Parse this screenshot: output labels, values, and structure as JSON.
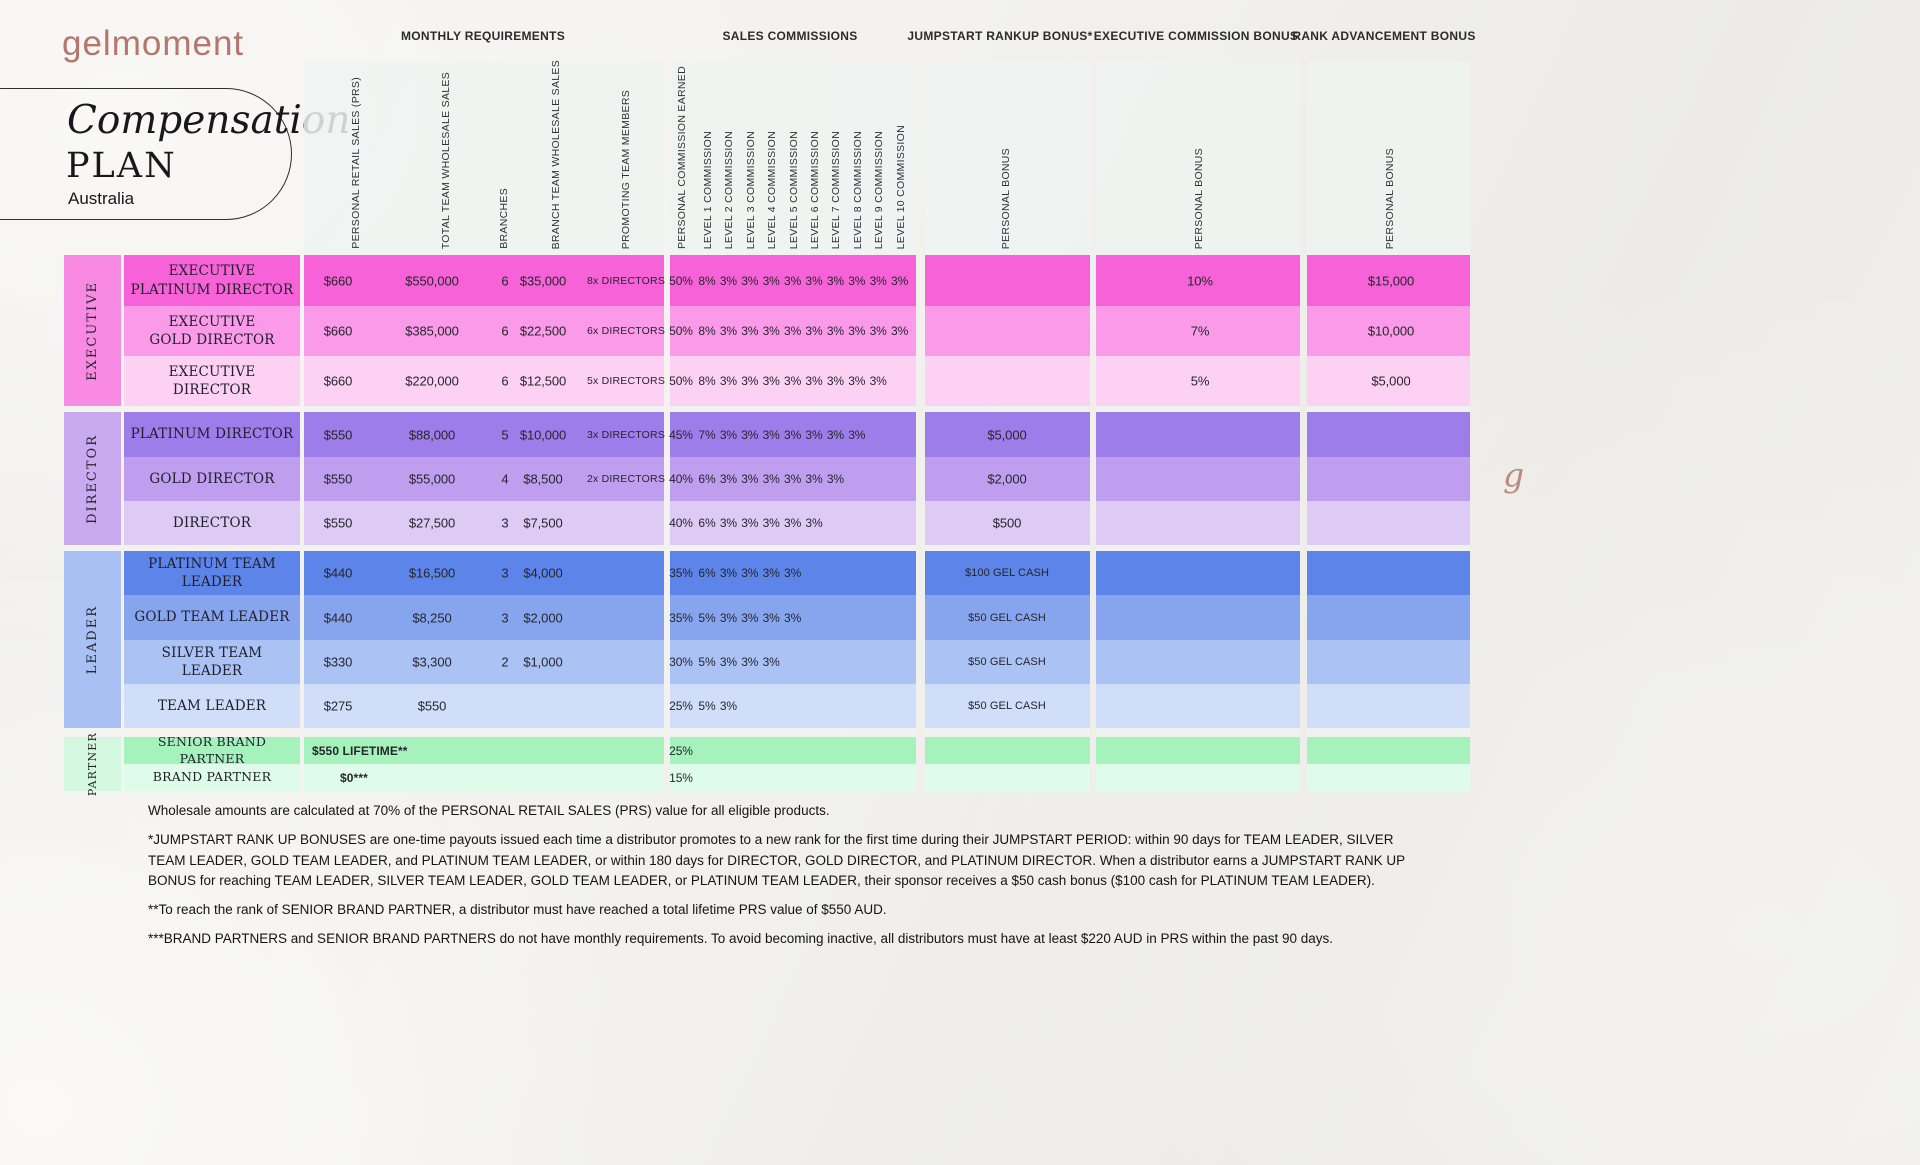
{
  "brand": {
    "logo": "gelmoment",
    "title_line1": "Compensation",
    "title_line2": "PLAN",
    "region": "Australia",
    "monogram": "g",
    "logo_color": "#b3786d"
  },
  "column_groups": [
    {
      "id": "monthly",
      "title": "MONTHLY REQUIREMENTS",
      "columns": [
        "PERSONAL RETAIL SALES (PRS)",
        "TOTAL TEAM WHOLESALE SALES",
        "BRANCHES",
        "BRANCH TEAM WHOLESALE SALES",
        "PROMOTING TEAM MEMBERS"
      ]
    },
    {
      "id": "commissions",
      "title": "SALES COMMISSIONS",
      "columns": [
        "PERSONAL COMMISSION EARNED",
        "LEVEL 1 COMMISSION",
        "LEVEL 2 COMMISSION",
        "LEVEL 3 COMMISSION",
        "LEVEL 4 COMMISSION",
        "LEVEL 5 COMMISSION",
        "LEVEL 6 COMMISSION",
        "LEVEL 7 COMMISSION",
        "LEVEL 8 COMMISSION",
        "LEVEL 9 COMMISSION",
        "LEVEL 10 COMMISSION"
      ]
    },
    {
      "id": "jumpstart",
      "title": "JUMPSTART RANKUP BONUS*",
      "columns": [
        "PERSONAL BONUS"
      ]
    },
    {
      "id": "exec_bonus",
      "title": "EXECUTIVE COMMISSION BONUS",
      "columns": [
        "PERSONAL BONUS"
      ]
    },
    {
      "id": "rank_adv",
      "title": "RANK ADVANCEMENT BONUS",
      "columns": [
        "PERSONAL BONUS"
      ]
    }
  ],
  "groups": [
    {
      "label": "EXECUTIVE",
      "color": "#f98ae4",
      "rows": [
        {
          "rank": "EXECUTIVE\nPLATINUM DIRECTOR",
          "color": "#f762d8",
          "monthly": [
            "$660",
            "$550,000",
            "6",
            "$35,000",
            "8x DIRECTORS"
          ],
          "commissions": [
            "50%",
            "8%",
            "3%",
            "3%",
            "3%",
            "3%",
            "3%",
            "3%",
            "3%",
            "3%",
            "3%"
          ],
          "jumpstart": "",
          "exec_bonus": "10%",
          "rank_adv": "$15,000"
        },
        {
          "rank": "EXECUTIVE\nGOLD DIRECTOR",
          "color": "#fa9ae9",
          "monthly": [
            "$660",
            "$385,000",
            "6",
            "$22,500",
            "6x DIRECTORS"
          ],
          "commissions": [
            "50%",
            "8%",
            "3%",
            "3%",
            "3%",
            "3%",
            "3%",
            "3%",
            "3%",
            "3%",
            "3%"
          ],
          "jumpstart": "",
          "exec_bonus": "7%",
          "rank_adv": "$10,000"
        },
        {
          "rank": "EXECUTIVE DIRECTOR",
          "color": "#fdd1f3",
          "monthly": [
            "$660",
            "$220,000",
            "6",
            "$12,500",
            "5x DIRECTORS"
          ],
          "commissions": [
            "50%",
            "8%",
            "3%",
            "3%",
            "3%",
            "3%",
            "3%",
            "3%",
            "3%",
            "3%"
          ],
          "jumpstart": "",
          "exec_bonus": "5%",
          "rank_adv": "$5,000"
        }
      ]
    },
    {
      "label": "DIRECTOR",
      "color": "#c9a9f0",
      "rows": [
        {
          "rank": "PLATINUM DIRECTOR",
          "color": "#9d7de9",
          "monthly": [
            "$550",
            "$88,000",
            "5",
            "$10,000",
            "3x DIRECTORS"
          ],
          "commissions": [
            "45%",
            "7%",
            "3%",
            "3%",
            "3%",
            "3%",
            "3%",
            "3%",
            "3%"
          ],
          "jumpstart": "$5,000",
          "exec_bonus": "",
          "rank_adv": ""
        },
        {
          "rank": "GOLD DIRECTOR",
          "color": "#bf9ef0",
          "monthly": [
            "$550",
            "$55,000",
            "4",
            "$8,500",
            "2x DIRECTORS"
          ],
          "commissions": [
            "40%",
            "6%",
            "3%",
            "3%",
            "3%",
            "3%",
            "3%",
            "3%"
          ],
          "jumpstart": "$2,000",
          "exec_bonus": "",
          "rank_adv": ""
        },
        {
          "rank": "DIRECTOR",
          "color": "#ddcaf5",
          "monthly": [
            "$550",
            "$27,500",
            "3",
            "$7,500",
            ""
          ],
          "commissions": [
            "40%",
            "6%",
            "3%",
            "3%",
            "3%",
            "3%",
            "3%"
          ],
          "jumpstart": "$500",
          "exec_bonus": "",
          "rank_adv": ""
        }
      ]
    },
    {
      "label": "LEADER",
      "color": "#a8c0f4",
      "rows": [
        {
          "rank": "PLATINUM TEAM LEADER",
          "color": "#5c84e9",
          "monthly": [
            "$440",
            "$16,500",
            "3",
            "$4,000",
            ""
          ],
          "commissions": [
            "35%",
            "6%",
            "3%",
            "3%",
            "3%",
            "3%"
          ],
          "jumpstart": "$100 GEL CASH",
          "exec_bonus": "",
          "rank_adv": ""
        },
        {
          "rank": "GOLD TEAM LEADER",
          "color": "#87a5ef",
          "monthly": [
            "$440",
            "$8,250",
            "3",
            "$2,000",
            ""
          ],
          "commissions": [
            "35%",
            "5%",
            "3%",
            "3%",
            "3%",
            "3%"
          ],
          "jumpstart": "$50 GEL CASH",
          "exec_bonus": "",
          "rank_adv": ""
        },
        {
          "rank": "SILVER TEAM LEADER",
          "color": "#abc2f5",
          "monthly": [
            "$330",
            "$3,300",
            "2",
            "$1,000",
            ""
          ],
          "commissions": [
            "30%",
            "5%",
            "3%",
            "3%",
            "3%"
          ],
          "jumpstart": "$50 GEL CASH",
          "exec_bonus": "",
          "rank_adv": ""
        },
        {
          "rank": "TEAM LEADER",
          "color": "#d1def9",
          "monthly": [
            "$275",
            "$550",
            "",
            "",
            ""
          ],
          "commissions": [
            "25%",
            "5%",
            "3%"
          ],
          "jumpstart": "$50 GEL CASH",
          "exec_bonus": "",
          "rank_adv": ""
        }
      ]
    },
    {
      "label": "PARTNER",
      "color": "#d4f8df",
      "rows": [
        {
          "rank": "SENIOR BRAND PARTNER",
          "color": "#a6f2bd",
          "monthly_single": "$550 LIFETIME**",
          "commissions": [
            "25%"
          ],
          "jumpstart": "",
          "exec_bonus": "",
          "rank_adv": ""
        },
        {
          "rank": "BRAND PARTNER",
          "color": "#dffbe9",
          "monthly_single": "$0***",
          "commissions": [
            "15%"
          ],
          "jumpstart": "",
          "exec_bonus": "",
          "rank_adv": ""
        }
      ]
    }
  ],
  "footnotes": [
    "Wholesale amounts are calculated at 70% of the PERSONAL RETAIL SALES (PRS) value for all eligible products.",
    "*JUMPSTART RANK UP BONUSES are one-time payouts issued each time a distributor promotes to a new rank for the first time during their JUMPSTART PERIOD: within 90 days for TEAM LEADER, SILVER TEAM LEADER, GOLD TEAM LEADER, and PLATINUM TEAM LEADER, or within 180 days for DIRECTOR, GOLD DIRECTOR, and PLATINUM DIRECTOR. When a distributor earns a JUMPSTART RANK UP BONUS for reaching TEAM LEADER, SILVER TEAM LEADER, GOLD TEAM LEADER, or PLATINUM TEAM LEADER, their sponsor receives a $50 cash bonus ($100 cash for PLATINUM TEAM LEADER).",
    "**To reach the rank of SENIOR BRAND PARTNER, a distributor must have reached a total lifetime PRS value of $550 AUD.",
    "***BRAND PARTNERS and SENIOR BRAND PARTNERS do not have monthly requirements. To avoid becoming inactive, all distributors must have at least  $220 AUD in PRS within the past 90 days."
  ]
}
